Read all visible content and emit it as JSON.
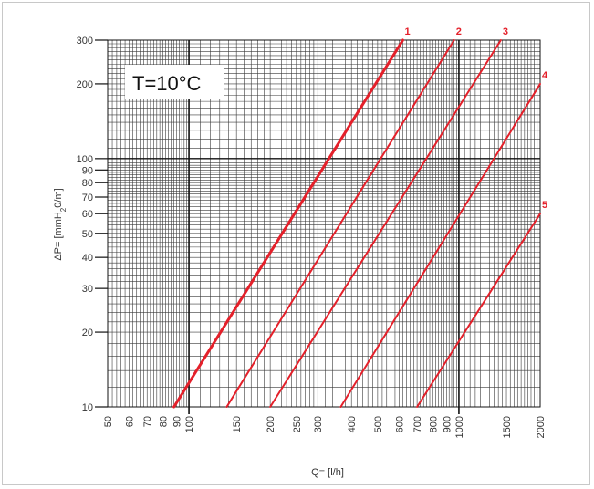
{
  "chart_data": {
    "type": "line",
    "title": "",
    "annotation": "T=10°C",
    "xlabel": "Q= [l/h]",
    "ylabel_parts": [
      "ΔP= [mmH",
      "2",
      "0/m]"
    ],
    "x_scale": "log",
    "y_scale": "log",
    "xlim": [
      50,
      2000
    ],
    "ylim": [
      10,
      300
    ],
    "x_ticks": [
      50,
      60,
      70,
      80,
      90,
      100,
      150,
      200,
      250,
      300,
      400,
      500,
      600,
      700,
      800,
      900,
      1000,
      1500,
      2000
    ],
    "y_ticks": [
      10,
      20,
      30,
      40,
      50,
      60,
      70,
      80,
      90,
      100,
      200,
      300
    ],
    "grid": true,
    "line_color": "#e4202a",
    "series": [
      {
        "name": "1",
        "x": [
          88,
          620
        ],
        "y": [
          10,
          300
        ]
      },
      {
        "name": "2",
        "x": [
          138,
          960
        ],
        "y": [
          10,
          300
        ]
      },
      {
        "name": "3",
        "x": [
          200,
          1430
        ],
        "y": [
          10,
          300
        ]
      },
      {
        "name": "4",
        "x": [
          365,
          2000
        ],
        "y": [
          10,
          200
        ]
      },
      {
        "name": "5",
        "x": [
          700,
          2000
        ],
        "y": [
          10,
          60
        ]
      }
    ]
  }
}
